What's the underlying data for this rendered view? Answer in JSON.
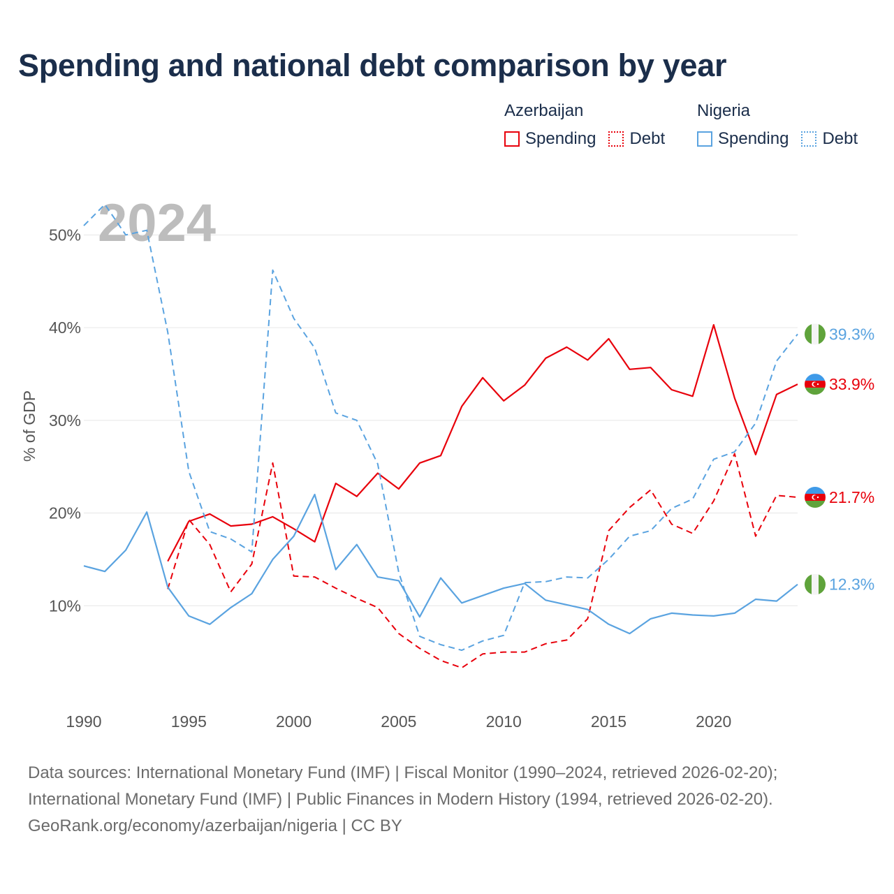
{
  "title": "Spending and national debt comparison by year",
  "year_watermark": "2024",
  "legend": {
    "groups": [
      {
        "country": "Azerbaijan",
        "spending_label": "Spending",
        "debt_label": "Debt",
        "color": "#e8000b"
      },
      {
        "country": "Nigeria",
        "spending_label": "Spending",
        "debt_label": "Debt",
        "color": "#5aa3e0"
      }
    ]
  },
  "source": {
    "line1": "Data sources: International Monetary Fund (IMF) | Fiscal Monitor (1990–2024, retrieved 2026-02-20);",
    "line2": "International Monetary Fund (IMF) | Public Finances in Modern History (1994, retrieved 2026-02-20).",
    "line3": "GeoRank.org/economy/azerbaijan/nigeria | CC BY"
  },
  "chart_data": {
    "type": "line",
    "title": "Spending and national debt comparison by year",
    "xlabel": "",
    "ylabel": "% of GDP",
    "xlim": [
      1990,
      2024
    ],
    "ylim": [
      0,
      55
    ],
    "x_ticks": [
      1990,
      1995,
      2000,
      2005,
      2010,
      2015,
      2020
    ],
    "y_ticks": [
      10,
      20,
      30,
      40,
      50
    ],
    "y_tick_labels": [
      "10%",
      "20%",
      "30%",
      "40%",
      "50%"
    ],
    "grid": true,
    "series": [
      {
        "name": "Azerbaijan Spending",
        "country": "Azerbaijan",
        "kind": "Spending",
        "color": "#e8000b",
        "dash": false,
        "end_label": "33.9%",
        "x": [
          1994,
          1995,
          1996,
          1997,
          1998,
          1999,
          2000,
          2001,
          2002,
          2003,
          2004,
          2005,
          2006,
          2007,
          2008,
          2009,
          2010,
          2011,
          2012,
          2013,
          2014,
          2015,
          2016,
          2017,
          2018,
          2019,
          2020,
          2021,
          2022,
          2023,
          2024
        ],
        "values": [
          14.8,
          19.1,
          19.9,
          18.6,
          18.8,
          19.6,
          18.3,
          16.9,
          23.2,
          21.8,
          24.3,
          22.6,
          25.4,
          26.2,
          31.5,
          34.6,
          32.1,
          33.8,
          36.7,
          37.9,
          36.5,
          38.8,
          35.5,
          35.7,
          33.3,
          32.6,
          40.3,
          32.4,
          26.3,
          32.8,
          33.9
        ]
      },
      {
        "name": "Azerbaijan Debt",
        "country": "Azerbaijan",
        "kind": "Debt",
        "color": "#e8000b",
        "dash": true,
        "end_label": "21.7%",
        "x": [
          1994,
          1995,
          1996,
          1997,
          1998,
          1999,
          2000,
          2001,
          2002,
          2003,
          2004,
          2005,
          2006,
          2007,
          2008,
          2009,
          2010,
          2011,
          2012,
          2013,
          2014,
          2015,
          2016,
          2017,
          2018,
          2019,
          2020,
          2021,
          2022,
          2023,
          2024
        ],
        "values": [
          11.8,
          19.3,
          16.6,
          11.5,
          14.5,
          25.4,
          13.2,
          13.1,
          11.9,
          10.8,
          9.8,
          7.0,
          5.4,
          4.1,
          3.3,
          4.8,
          5.0,
          5.0,
          5.9,
          6.3,
          8.6,
          18.1,
          20.6,
          22.5,
          18.8,
          17.8,
          21.3,
          26.4,
          17.5,
          21.9,
          21.7
        ]
      },
      {
        "name": "Nigeria Spending",
        "country": "Nigeria",
        "kind": "Spending",
        "color": "#5aa3e0",
        "dash": false,
        "end_label": "12.3%",
        "x": [
          1990,
          1991,
          1992,
          1993,
          1994,
          1995,
          1996,
          1997,
          1998,
          1999,
          2000,
          2001,
          2002,
          2003,
          2004,
          2005,
          2006,
          2007,
          2008,
          2009,
          2010,
          2011,
          2012,
          2013,
          2014,
          2015,
          2016,
          2017,
          2018,
          2019,
          2020,
          2021,
          2022,
          2023,
          2024
        ],
        "values": [
          14.3,
          13.7,
          16.0,
          20.1,
          12.0,
          8.9,
          8.0,
          9.8,
          11.3,
          15.0,
          17.5,
          22.0,
          13.9,
          16.6,
          13.1,
          12.7,
          8.8,
          13.0,
          10.3,
          11.1,
          11.9,
          12.4,
          10.6,
          10.1,
          9.6,
          8.0,
          7.0,
          8.6,
          9.2,
          9.0,
          8.9,
          9.2,
          10.7,
          10.5,
          12.3
        ]
      },
      {
        "name": "Nigeria Debt",
        "country": "Nigeria",
        "kind": "Debt",
        "color": "#5aa3e0",
        "dash": true,
        "end_label": "39.3%",
        "x": [
          1990,
          1991,
          1992,
          1993,
          1994,
          1995,
          1996,
          1997,
          1998,
          1999,
          2000,
          2001,
          2002,
          2003,
          2004,
          2005,
          2006,
          2007,
          2008,
          2009,
          2010,
          2011,
          2012,
          2013,
          2014,
          2015,
          2016,
          2017,
          2018,
          2019,
          2020,
          2021,
          2022,
          2023,
          2024
        ],
        "values": [
          51.0,
          53.3,
          50.0,
          50.5,
          39.5,
          24.5,
          18.0,
          17.2,
          15.8,
          46.2,
          41.0,
          37.8,
          30.8,
          30.0,
          25.3,
          13.6,
          6.7,
          5.8,
          5.2,
          6.2,
          6.8,
          12.5,
          12.6,
          13.1,
          13.0,
          15.0,
          17.5,
          18.1,
          20.5,
          21.5,
          25.8,
          26.6,
          29.7,
          36.4,
          39.3
        ]
      }
    ]
  }
}
